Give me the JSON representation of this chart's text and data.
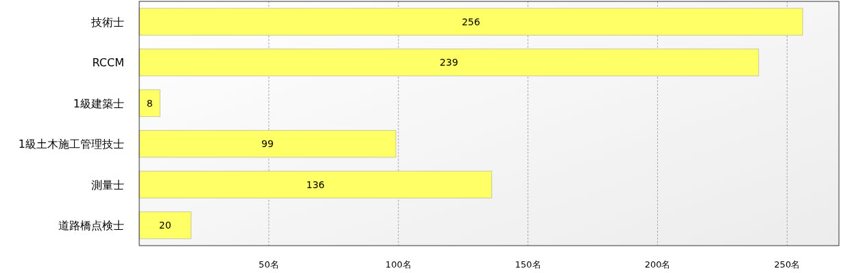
{
  "chart_data": {
    "type": "bar",
    "orientation": "horizontal",
    "categories": [
      "技術士",
      "RCCM",
      "1級建築士",
      "1級土木施工管理技士",
      "測量士",
      "道路橋点検士"
    ],
    "values": [
      256,
      239,
      8,
      99,
      136,
      20
    ],
    "color": "#ffff66",
    "xlim": [
      0,
      270
    ],
    "xticks": [
      {
        "value": 50,
        "label": "50名"
      },
      {
        "value": 100,
        "label": "100名"
      },
      {
        "value": 150,
        "label": "150名"
      },
      {
        "value": 200,
        "label": "200名"
      },
      {
        "value": 250,
        "label": "250名"
      }
    ],
    "grid": "x",
    "data_labels": true
  }
}
